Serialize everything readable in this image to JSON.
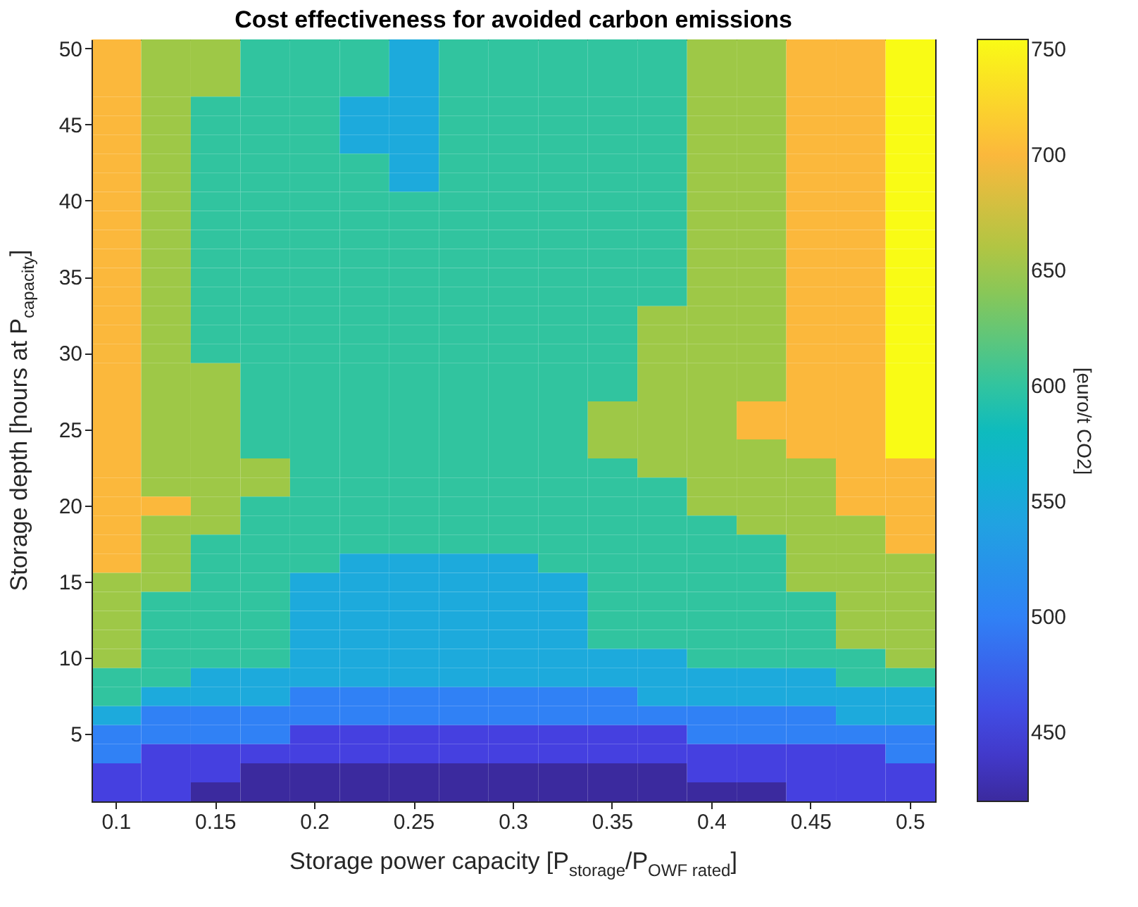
{
  "chart_data": {
    "type": "heatmap",
    "title": "Cost effectiveness for avoided carbon emissions",
    "xlabel": "Storage power capacity [P$_{storage}$/P$_{OWF rated}$]",
    "ylabel": "Storage depth [hours at P$_{capacity}$]",
    "clabel": "[euro/t CO2]",
    "categories": [
      "0.1",
      null,
      "0.15",
      null,
      "0.2",
      null,
      "0.25",
      null,
      "0.3",
      null,
      "0.35",
      null,
      "0.4",
      null,
      "0.45",
      null,
      "0.5"
    ],
    "y_categories": [
      "50",
      null,
      null,
      null,
      "45",
      null,
      null,
      null,
      "40",
      null,
      null,
      null,
      "35",
      null,
      null,
      null,
      "30",
      null,
      null,
      null,
      "25",
      null,
      null,
      null,
      "20",
      null,
      null,
      null,
      "15",
      null,
      null,
      null,
      "10",
      null,
      null,
      null,
      "5",
      null,
      null,
      null
    ],
    "cells": [
      [
        700,
        650,
        650,
        600,
        600,
        600,
        550,
        600,
        600,
        600,
        600,
        600,
        650,
        650,
        700,
        700,
        750
      ],
      [
        700,
        650,
        650,
        600,
        600,
        600,
        550,
        600,
        600,
        600,
        600,
        600,
        650,
        650,
        700,
        700,
        750
      ],
      [
        700,
        650,
        650,
        600,
        600,
        600,
        550,
        600,
        600,
        600,
        600,
        600,
        650,
        650,
        700,
        700,
        750
      ],
      [
        700,
        650,
        600,
        600,
        600,
        550,
        550,
        600,
        600,
        600,
        600,
        600,
        650,
        650,
        700,
        700,
        750
      ],
      [
        700,
        650,
        600,
        600,
        600,
        550,
        550,
        600,
        600,
        600,
        600,
        600,
        650,
        650,
        700,
        700,
        750
      ],
      [
        700,
        650,
        600,
        600,
        600,
        550,
        550,
        600,
        600,
        600,
        600,
        600,
        650,
        650,
        700,
        700,
        750
      ],
      [
        700,
        650,
        600,
        600,
        600,
        600,
        550,
        600,
        600,
        600,
        600,
        600,
        650,
        650,
        700,
        700,
        750
      ],
      [
        700,
        650,
        600,
        600,
        600,
        600,
        550,
        600,
        600,
        600,
        600,
        600,
        650,
        650,
        700,
        700,
        750
      ],
      [
        700,
        650,
        600,
        600,
        600,
        600,
        600,
        600,
        600,
        600,
        600,
        600,
        650,
        650,
        700,
        700,
        750
      ],
      [
        700,
        650,
        600,
        600,
        600,
        600,
        600,
        600,
        600,
        600,
        600,
        600,
        650,
        650,
        700,
        700,
        750
      ],
      [
        700,
        650,
        600,
        600,
        600,
        600,
        600,
        600,
        600,
        600,
        600,
        600,
        650,
        650,
        700,
        700,
        750
      ],
      [
        700,
        650,
        600,
        600,
        600,
        600,
        600,
        600,
        600,
        600,
        600,
        600,
        650,
        650,
        700,
        700,
        750
      ],
      [
        700,
        650,
        600,
        600,
        600,
        600,
        600,
        600,
        600,
        600,
        600,
        600,
        650,
        650,
        700,
        700,
        750
      ],
      [
        700,
        650,
        600,
        600,
        600,
        600,
        600,
        600,
        600,
        600,
        600,
        600,
        650,
        650,
        700,
        700,
        750
      ],
      [
        700,
        650,
        600,
        600,
        600,
        600,
        600,
        600,
        600,
        600,
        600,
        650,
        650,
        650,
        700,
        700,
        750
      ],
      [
        700,
        650,
        600,
        600,
        600,
        600,
        600,
        600,
        600,
        600,
        600,
        650,
        650,
        650,
        700,
        700,
        750
      ],
      [
        700,
        650,
        600,
        600,
        600,
        600,
        600,
        600,
        600,
        600,
        600,
        650,
        650,
        650,
        700,
        700,
        750
      ],
      [
        700,
        650,
        650,
        600,
        600,
        600,
        600,
        600,
        600,
        600,
        600,
        650,
        650,
        650,
        700,
        700,
        750
      ],
      [
        700,
        650,
        650,
        600,
        600,
        600,
        600,
        600,
        600,
        600,
        600,
        650,
        650,
        650,
        700,
        700,
        750
      ],
      [
        700,
        650,
        650,
        600,
        600,
        600,
        600,
        600,
        600,
        600,
        650,
        650,
        650,
        700,
        700,
        700,
        750
      ],
      [
        700,
        650,
        650,
        600,
        600,
        600,
        600,
        600,
        600,
        600,
        650,
        650,
        650,
        700,
        700,
        700,
        750
      ],
      [
        700,
        650,
        650,
        600,
        600,
        600,
        600,
        600,
        600,
        600,
        650,
        650,
        650,
        650,
        700,
        700,
        750
      ],
      [
        700,
        650,
        650,
        650,
        600,
        600,
        600,
        600,
        600,
        600,
        600,
        650,
        650,
        650,
        650,
        700,
        700
      ],
      [
        700,
        650,
        650,
        650,
        600,
        600,
        600,
        600,
        600,
        600,
        600,
        600,
        650,
        650,
        650,
        700,
        700
      ],
      [
        700,
        700,
        650,
        600,
        600,
        600,
        600,
        600,
        600,
        600,
        600,
        600,
        650,
        650,
        650,
        700,
        700
      ],
      [
        700,
        650,
        650,
        600,
        600,
        600,
        600,
        600,
        600,
        600,
        600,
        600,
        600,
        650,
        650,
        650,
        700
      ],
      [
        700,
        650,
        600,
        600,
        600,
        600,
        600,
        600,
        600,
        600,
        600,
        600,
        600,
        600,
        650,
        650,
        700
      ],
      [
        700,
        650,
        600,
        600,
        600,
        550,
        550,
        550,
        550,
        600,
        600,
        600,
        600,
        600,
        650,
        650,
        650
      ],
      [
        650,
        650,
        600,
        600,
        550,
        550,
        550,
        550,
        550,
        550,
        600,
        600,
        600,
        600,
        650,
        650,
        650
      ],
      [
        650,
        600,
        600,
        600,
        550,
        550,
        550,
        550,
        550,
        550,
        600,
        600,
        600,
        600,
        600,
        650,
        650
      ],
      [
        650,
        600,
        600,
        600,
        550,
        550,
        550,
        550,
        550,
        550,
        600,
        600,
        600,
        600,
        600,
        650,
        650
      ],
      [
        650,
        600,
        600,
        600,
        550,
        550,
        550,
        550,
        550,
        550,
        600,
        600,
        600,
        600,
        600,
        650,
        650
      ],
      [
        650,
        600,
        600,
        600,
        550,
        550,
        550,
        550,
        550,
        550,
        550,
        550,
        600,
        600,
        600,
        600,
        650
      ],
      [
        600,
        600,
        550,
        550,
        550,
        550,
        550,
        550,
        550,
        550,
        550,
        550,
        550,
        550,
        550,
        600,
        600
      ],
      [
        600,
        550,
        550,
        550,
        500,
        500,
        500,
        500,
        500,
        500,
        500,
        550,
        550,
        550,
        550,
        550,
        550
      ],
      [
        550,
        500,
        500,
        500,
        500,
        500,
        500,
        500,
        500,
        500,
        500,
        500,
        500,
        500,
        500,
        550,
        550
      ],
      [
        500,
        500,
        500,
        500,
        450,
        450,
        450,
        450,
        450,
        450,
        450,
        450,
        500,
        500,
        500,
        500,
        500
      ],
      [
        500,
        450,
        450,
        450,
        450,
        450,
        450,
        450,
        450,
        450,
        450,
        450,
        450,
        450,
        450,
        450,
        500
      ],
      [
        450,
        450,
        450,
        420,
        420,
        420,
        420,
        420,
        420,
        420,
        420,
        420,
        450,
        450,
        450,
        450,
        450
      ],
      [
        450,
        450,
        420,
        420,
        420,
        420,
        420,
        420,
        420,
        420,
        420,
        420,
        420,
        420,
        450,
        450,
        450
      ]
    ],
    "clim": [
      420,
      750
    ],
    "cticks": [
      450,
      500,
      550,
      600,
      650,
      700,
      750
    ]
  }
}
